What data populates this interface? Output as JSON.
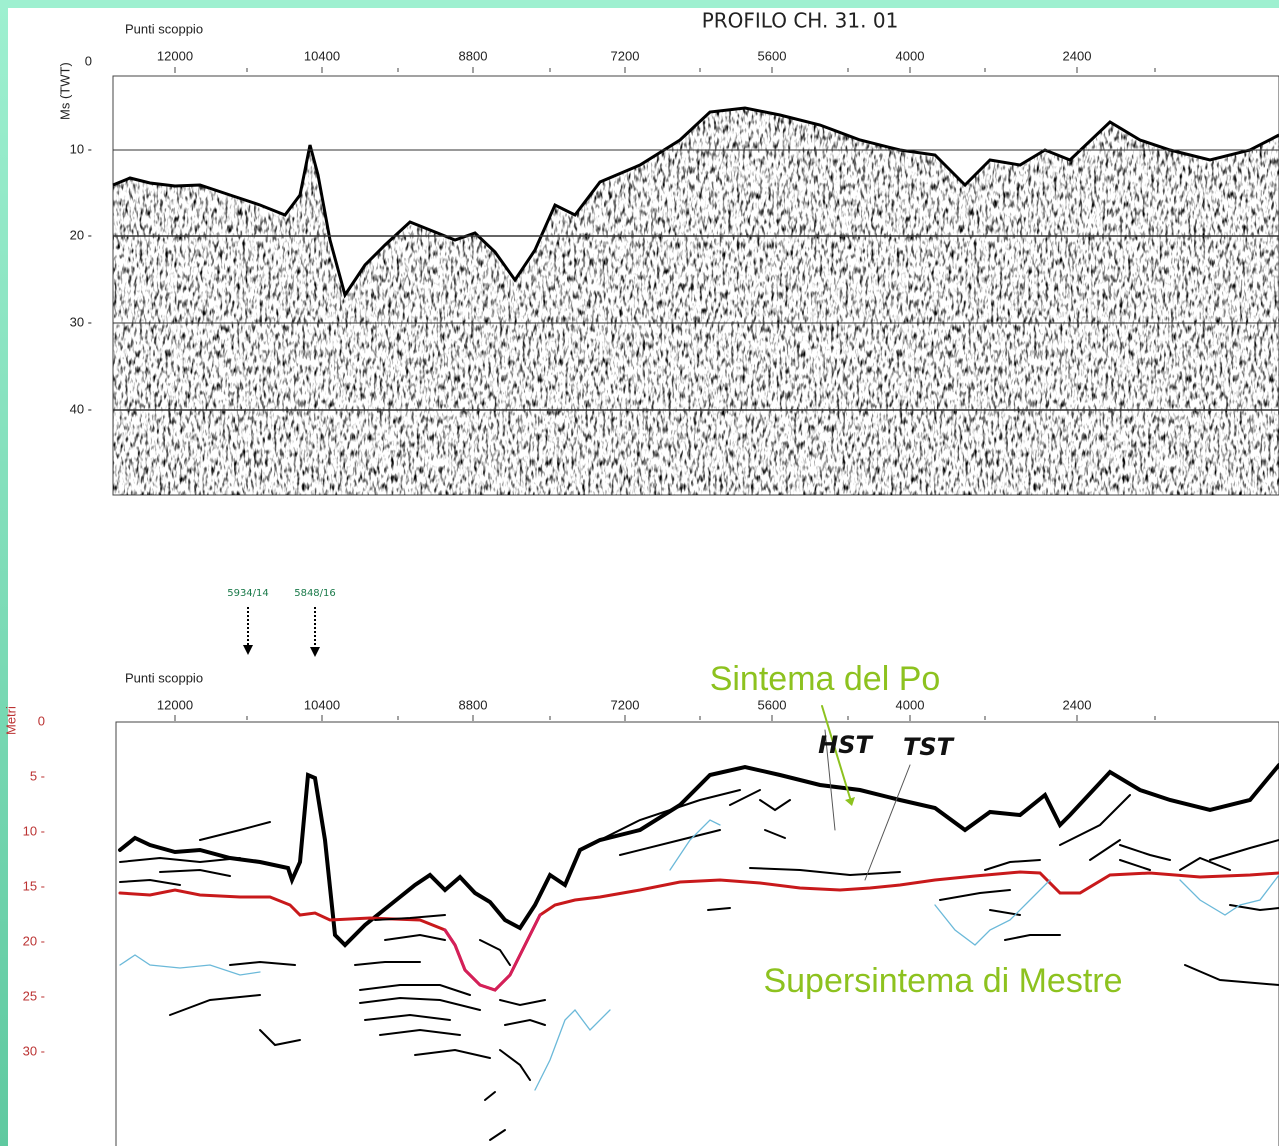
{
  "top_panel": {
    "title": "PROFILO CH. 31. 01",
    "x_axis_label": "Punti scoppio",
    "x_ticks": [
      "12000",
      "10400",
      "8800",
      "7200",
      "5600",
      "4000",
      "2400"
    ],
    "y_axis_label": "Ms (TWT)",
    "y_ticks": [
      "0",
      "10 -",
      "20 -",
      "30 -",
      "40 -"
    ]
  },
  "bottom_panel": {
    "wells": [
      "5934/14",
      "5848/16"
    ],
    "x_axis_label": "Punti scoppio",
    "x_ticks": [
      "12000",
      "10400",
      "8800",
      "7200",
      "5600",
      "4000",
      "2400"
    ],
    "y_axis_label": "Metri",
    "y_ticks": [
      "0",
      "5 -",
      "10 -",
      "15 -",
      "20 -",
      "25 -",
      "30 -"
    ],
    "annotations": {
      "upper_unit": "Sintema del Po",
      "hst": "HST",
      "tst": "TST",
      "lower_unit": "Supersintema di Mestre"
    }
  }
}
